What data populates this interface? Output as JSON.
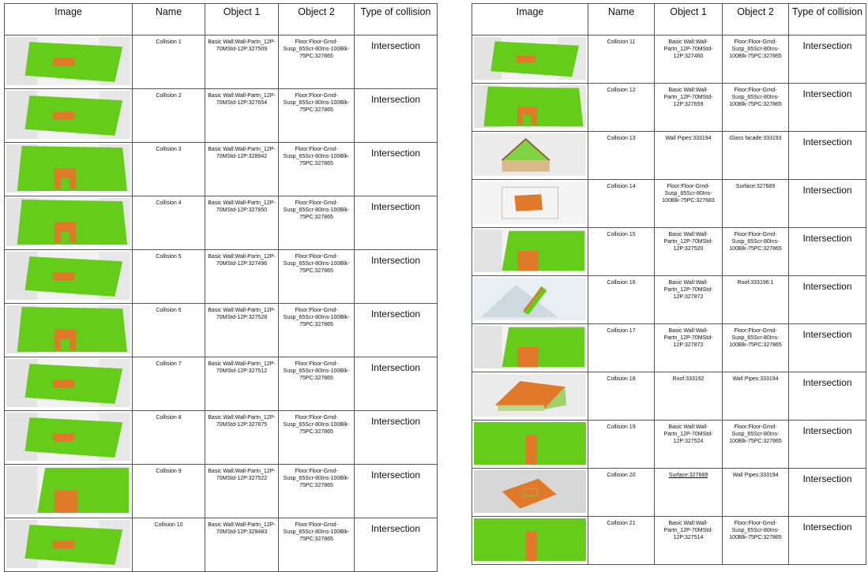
{
  "headers": {
    "image": "Image",
    "name": "Name",
    "object1": "Object 1",
    "object2": "Object 2",
    "type": "Type of collision"
  },
  "colors": {
    "green": "#66cc1a",
    "orange": "#e07a2a",
    "grey": "#d8d8d8",
    "border": "#555555"
  },
  "left": [
    {
      "name": "Collision 1",
      "object1": "Basic Wall:Wall-Partn_12P-70MStd-12P:327509",
      "object2": "Floor:Floor-Grnd-Susp_65Scr-80Ins-100Blk-75PC:327865",
      "type": "Intersection",
      "thumb": "wall-slab"
    },
    {
      "name": "Collision 2",
      "object1": "Basic Wall:Wall-Partn_12P-70MStd-12P:327654",
      "object2": "Floor:Floor-Grnd-Susp_65Scr-80Ins-100Blk-75PC:327865",
      "type": "Intersection",
      "thumb": "wall-slab"
    },
    {
      "name": "Collision 3",
      "object1": "Basic Wall:Wall-Partn_12P-70MStd-12P:328942",
      "object2": "Floor:Floor-Grnd-Susp_65Scr-80Ins-100Blk-75PC:327865",
      "type": "Intersection",
      "thumb": "door-wall"
    },
    {
      "name": "Collision 4",
      "object1": "Basic Wall:Wall-Partn_12P-70MStd-12P:327850",
      "object2": "Floor:Floor-Grnd-Susp_65Scr-80Ins-100Blk-75PC:327865",
      "type": "Intersection",
      "thumb": "door-wall"
    },
    {
      "name": "Collision 5",
      "object1": "Basic Wall:Wall-Partn_12P-70MStd-12P:327496",
      "object2": "Floor:Floor-Grnd-Susp_65Scr-80Ins-100Blk-75PC:327865",
      "type": "Intersection",
      "thumb": "wall-slab"
    },
    {
      "name": "Collision 6",
      "object1": "Basic Wall:Wall-Partn_12P-70MStd-12P:327528",
      "object2": "Floor:Floor-Grnd-Susp_65Scr-80Ins-100Blk-75PC:327865",
      "type": "Intersection",
      "thumb": "door-wall"
    },
    {
      "name": "Collision 7",
      "object1": "Basic Wall:Wall-Partn_12P-70MStd-12P:327512",
      "object2": "Floor:Floor-Grnd-Susp_65Scr-80Ins-100Blk-75PC:327865",
      "type": "Intersection",
      "thumb": "wall-slab"
    },
    {
      "name": "Collision 8",
      "object1": "Basic Wall:Wall-Partn_12P-70MStd-12P:327875",
      "object2": "Floor:Floor-Grnd-Susp_65Scr-80Ins-100Blk-75PC:327865",
      "type": "Intersection",
      "thumb": "wall-slab"
    },
    {
      "name": "Collision 9",
      "object1": "Basic Wall:Wall-Partn_12P-70MStd-12P:327522",
      "object2": "Floor:Floor-Grnd-Susp_65Scr-80Ins-100Blk-75PC:327865",
      "type": "Intersection",
      "thumb": "block"
    },
    {
      "name": "Collision 10",
      "object1": "Basic Wall:Wall-Partn_12P-70MStd-12P:329483",
      "object2": "Floor:Floor-Grnd-Susp_65Scr-80Ins-100Blk-75PC:327865",
      "type": "Intersection",
      "thumb": "wall-slab"
    }
  ],
  "right": [
    {
      "name": "Collision 11",
      "object1": "Basic Wall:Wall-Partn_12P-70MStd-12P:327460",
      "object2": "Floor:Floor-Grnd-Susp_65Scr-80Ins-100Blk-75PC:327865",
      "type": "Intersection",
      "thumb": "wall-slab"
    },
    {
      "name": "Collision 12",
      "object1": "Basic Wall:Wall-Partn_12P-70MStd-12P:327659",
      "object2": "Floor:Floor-Grnd-Susp_65Scr-80Ins-100Blk-75PC:327865",
      "type": "Intersection",
      "thumb": "door-wall"
    },
    {
      "name": "Collision 13",
      "object1": "Wall Pipes:333194",
      "object2": "Glass facade:333193",
      "type": "Intersection",
      "thumb": "house"
    },
    {
      "name": "Collision 14",
      "object1": "Floor:Floor-Grnd-Susp_65Scr-80Ins-100Blk-75PC:327683",
      "object2": "Surface:327689",
      "type": "Intersection",
      "thumb": "small-slab"
    },
    {
      "name": "Collision 15",
      "object1": "Basic Wall:Wall-Partn_12P-70MStd-12P:327520",
      "object2": "Floor:Floor-Grnd-Susp_65Scr-80Ins-100Blk-75PC:327865",
      "type": "Intersection",
      "thumb": "block"
    },
    {
      "name": "Collision 16",
      "object1": "Basic Wall:Wall-Partn_12P-70MStd-12P:327872",
      "object2": "Roof:333196:1",
      "type": "Intersection",
      "thumb": "roof-edge"
    },
    {
      "name": "Collision 17",
      "object1": "Basic Wall:Wall-Partn_12P-70MStd-12P:327872",
      "object2": "Floor:Floor-Grnd-Susp_65Scr-80Ins-100Blk-75PC:327865",
      "type": "Intersection",
      "thumb": "block"
    },
    {
      "name": "Collision 18",
      "object1": "Roof:333192",
      "object2": "Wall Pipes:333194",
      "type": "Intersection",
      "thumb": "roof"
    },
    {
      "name": "Collision 19",
      "object1": "Basic Wall:Wall-Partn_12P-70MStd-12P:327524",
      "object2": "Floor:Floor-Grnd-Susp_65Scr-80Ins-100Blk-75PC:327865",
      "type": "Intersection",
      "thumb": "full-green"
    },
    {
      "name": "Collision 20",
      "object1": "Surface:327689",
      "object2": "Wall Pipes:333194",
      "type": "Intersection",
      "thumb": "tilted-slab",
      "underline1": true
    },
    {
      "name": "Collision 21",
      "object1": "Basic Wall:Wall-Partn_12P-70MStd-12P:327514",
      "object2": "Floor:Floor-Grnd-Susp_65Scr-80Ins-100Blk-75PC:327865",
      "type": "Intersection",
      "thumb": "full-green"
    }
  ]
}
